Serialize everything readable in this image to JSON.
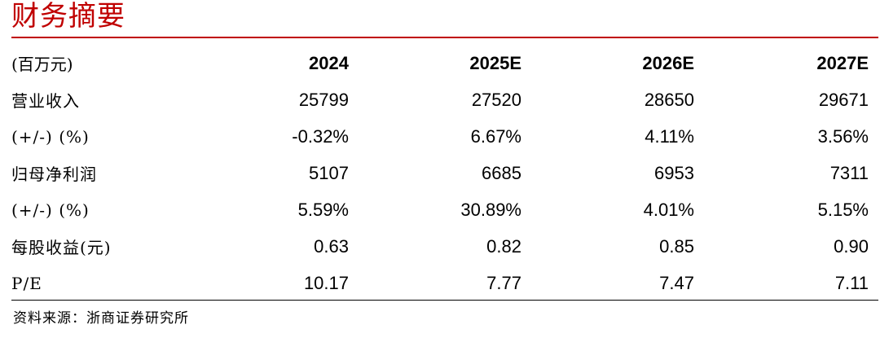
{
  "title": "财务摘要",
  "colors": {
    "accent": "#c00000",
    "text": "#000000"
  },
  "table": {
    "header": {
      "label": "(百万元)",
      "years": [
        "2024",
        "2025E",
        "2026E",
        "2027E"
      ]
    },
    "rows": [
      {
        "label": "营业收入",
        "values": [
          "25799",
          "27520",
          "28650",
          "29671"
        ]
      },
      {
        "label": "(+/-) (%)",
        "values": [
          "-0.32%",
          "6.67%",
          "4.11%",
          "3.56%"
        ]
      },
      {
        "label": "归母净利润",
        "values": [
          "5107",
          "6685",
          "6953",
          "7311"
        ]
      },
      {
        "label": "(+/-) (%)",
        "values": [
          "5.59%",
          "30.89%",
          "4.01%",
          "5.15%"
        ]
      },
      {
        "label": "每股收益(元)",
        "values": [
          "0.63",
          "0.82",
          "0.85",
          "0.90"
        ]
      },
      {
        "label": "P/E",
        "values": [
          "10.17",
          "7.77",
          "7.47",
          "7.11"
        ]
      }
    ]
  },
  "source": "资料来源：浙商证券研究所"
}
